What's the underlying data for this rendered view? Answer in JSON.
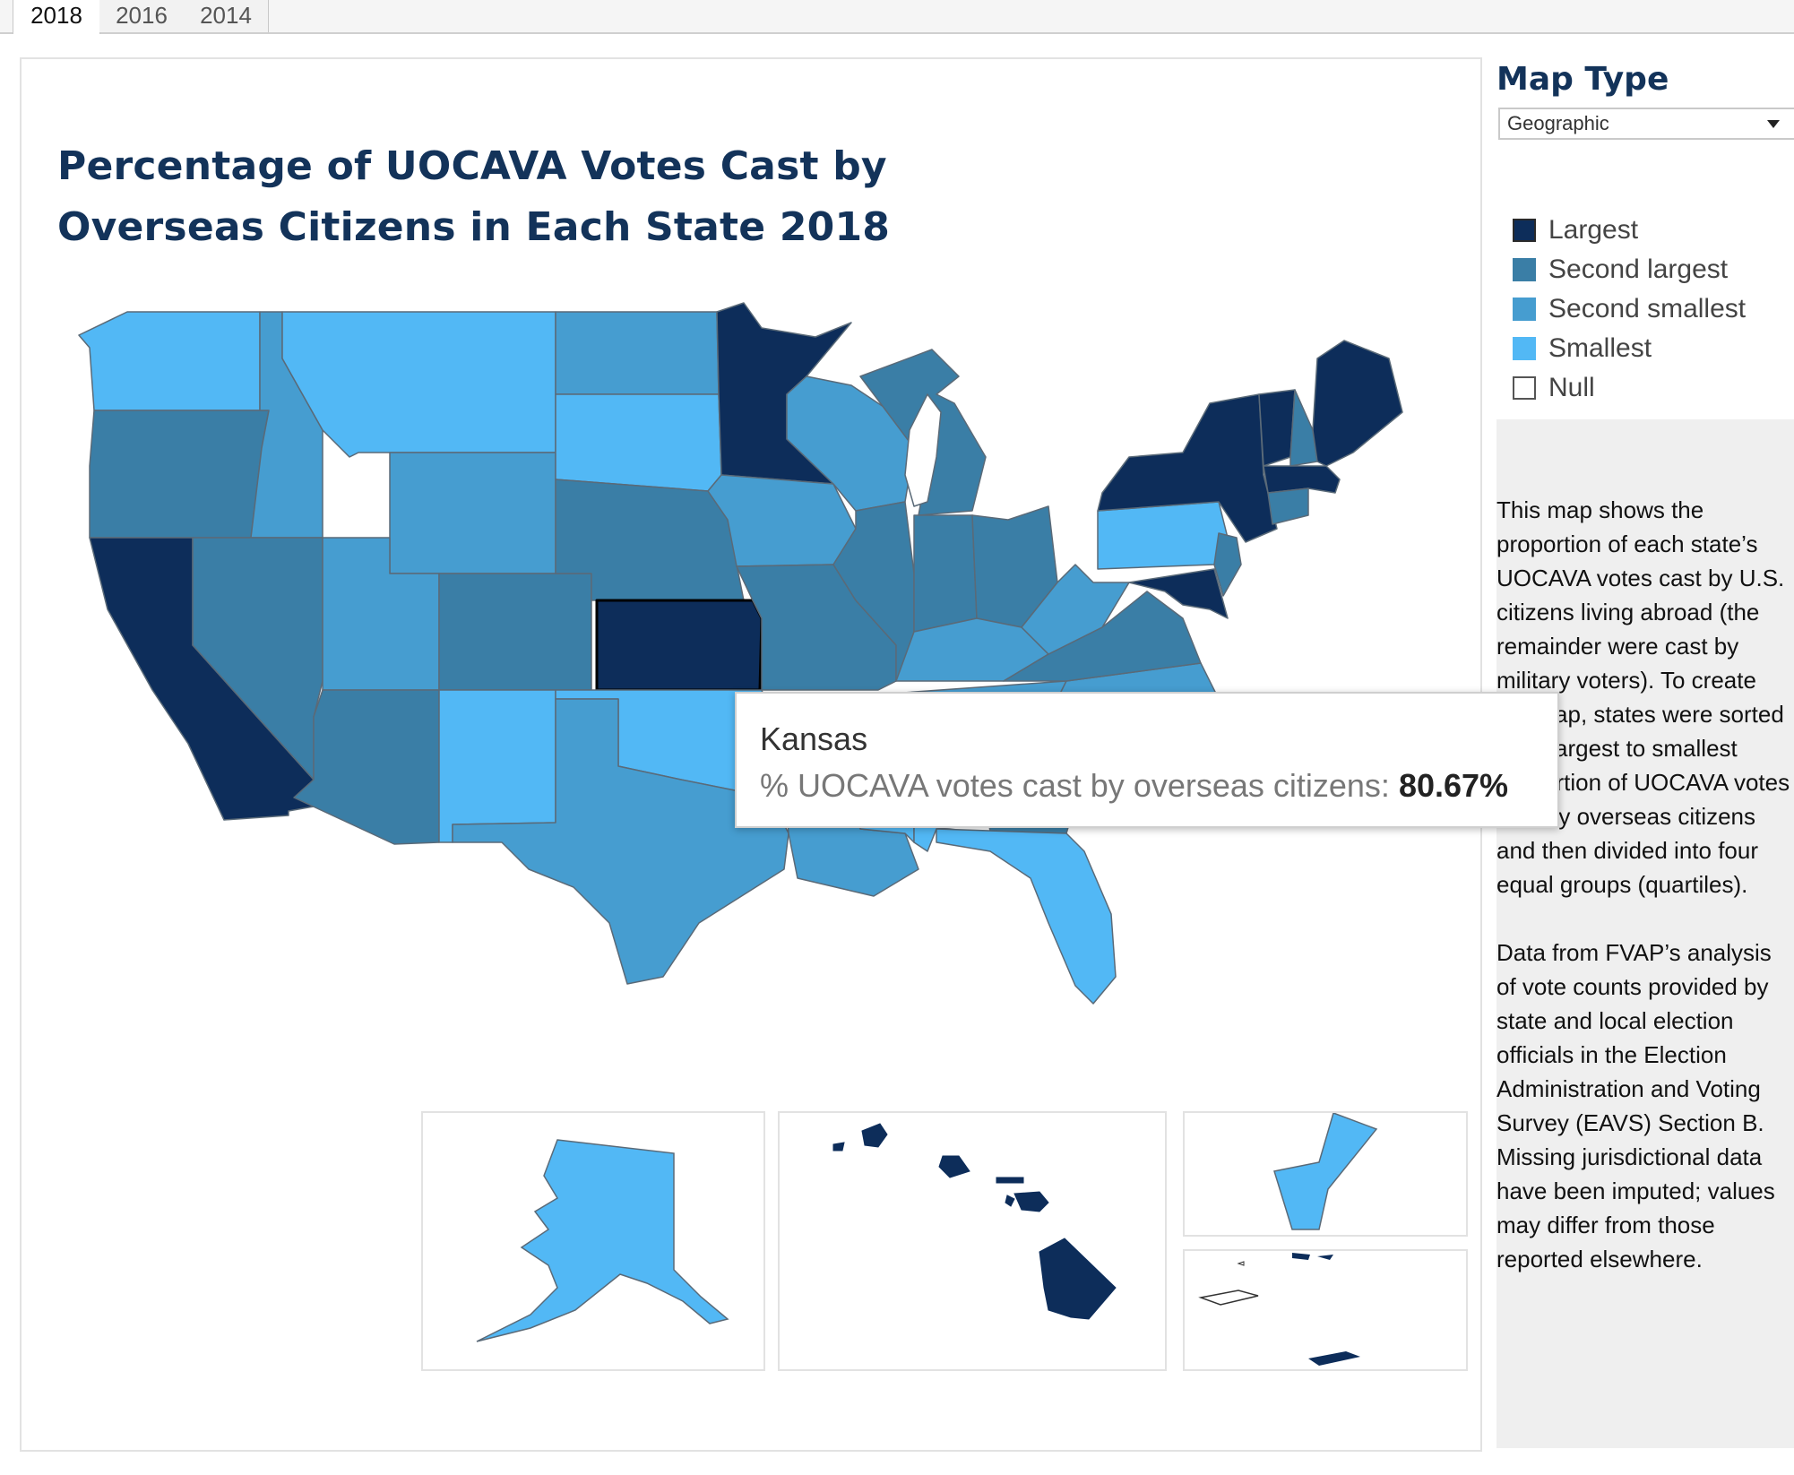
{
  "tabs": [
    {
      "label": "2018",
      "active": true
    },
    {
      "label": "2016",
      "active": false
    },
    {
      "label": "2014",
      "active": false
    }
  ],
  "title": "Percentage  of UOCAVA Votes Cast by Overseas Citizens in Each State 2018",
  "map_type": {
    "heading": "Map Type",
    "selected": "Geographic"
  },
  "legend": [
    {
      "label": "Largest",
      "color": "#0d2d5a"
    },
    {
      "label": "Second largest",
      "color": "#3a7ea6"
    },
    {
      "label": "Second smallest",
      "color": "#469dd0"
    },
    {
      "label": "Smallest",
      "color": "#52b8f5"
    },
    {
      "label": "Null",
      "color": "#ffffff"
    }
  ],
  "note": {
    "p1": "This map shows the proportion of each state’s UOCAVA votes cast by U.S. citizens living abroad (the remainder were cast by military voters). To create the map, states were sorted from largest to smallest proportion of UOCAVA votes cast by overseas citizens and then divided into four equal groups (quartiles).",
    "p2": "Data from FVAP’s analysis of vote counts provided by state and local election officials in the Election Administration and Voting Survey (EAVS) Section B. Missing jurisdictional data have been imputed; values may differ from those reported elsewhere."
  },
  "tooltip": {
    "state": "Kansas",
    "label": "% UOCAVA votes cast by overseas citizens:",
    "value": "80.67%"
  },
  "colors": {
    "largest": "#0d2d5a",
    "second_largest": "#3a7ea6",
    "second_smallest": "#469dd0",
    "smallest": "#52b8f5",
    "title": "#13335a"
  }
}
